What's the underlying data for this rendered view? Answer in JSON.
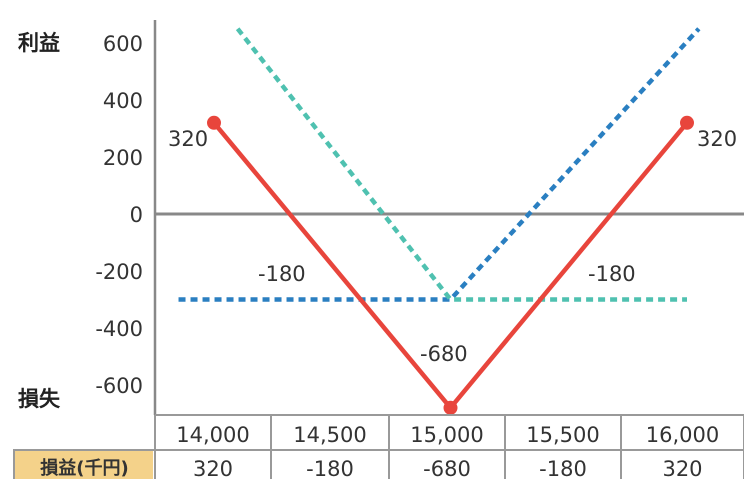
{
  "chart_data": {
    "type": "line",
    "x": [
      14000,
      14500,
      15000,
      15500,
      16000
    ],
    "xlim": [
      13750,
      16250
    ],
    "ylim": [
      -700,
      650
    ],
    "y_ticks": [
      600,
      400,
      200,
      0,
      -200,
      -400,
      -600
    ],
    "y_tick_labels": [
      "600",
      "400",
      "200",
      "0",
      "-200",
      "-400",
      "-600"
    ],
    "ylabel_top": "利益",
    "ylabel_bottom": "損失",
    "series": [
      {
        "key": "call",
        "style": "dotted",
        "color": "#2a7fc1",
        "points": [
          [
            13850,
            -300
          ],
          [
            15000,
            -300
          ],
          [
            16050,
            650
          ]
        ]
      },
      {
        "key": "put",
        "style": "dotted",
        "color": "#4fc1b0",
        "points": [
          [
            14100,
            650
          ],
          [
            15000,
            -300
          ],
          [
            16000,
            -300
          ]
        ]
      },
      {
        "key": "straddle",
        "style": "solid",
        "color": "#e8453c",
        "points": [
          [
            14000,
            320
          ],
          [
            14500,
            -180
          ],
          [
            15000,
            -680
          ],
          [
            15500,
            -180
          ],
          [
            16000,
            320
          ]
        ],
        "end_markers": true
      }
    ],
    "data_labels": [
      "320",
      "-180",
      "-680",
      "-180",
      "320"
    ],
    "table": {
      "header": [
        "14,000",
        "14,500",
        "15,000",
        "15,500",
        "16,000"
      ],
      "row_label": "損益(千円)",
      "row": [
        "320",
        "-180",
        "-680",
        "-180",
        "320"
      ]
    },
    "colors": {
      "axis": "#888888",
      "zero_line": "#888888",
      "table_border": "#999999",
      "row_label_bg": "#f4d28a"
    }
  }
}
